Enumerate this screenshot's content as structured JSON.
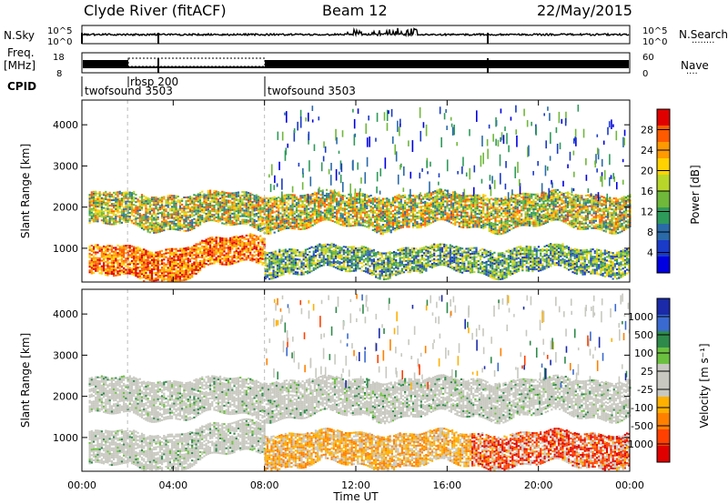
{
  "header": {
    "station": "Clyde River (fitACF)",
    "beam": "Beam 12",
    "date": "22/May/2015"
  },
  "panels": {
    "nsky": {
      "label": "N.Sky",
      "ticks_left": [
        "10^5",
        "10^0"
      ],
      "ticks_right": [
        "10^5",
        "10^0"
      ],
      "right_label": "N.Search"
    },
    "freq": {
      "label_top": "Freq.",
      "label_unit": "[MHz]",
      "ticks_left": [
        "18",
        "8"
      ],
      "ticks_right": [
        "60",
        "0"
      ],
      "right_label": "Nave"
    },
    "cpid": {
      "label": "CPID",
      "entries": [
        {
          "name": "twofsound 3503",
          "start": "00:00"
        },
        {
          "name": "rbsp 200",
          "start": "02:00"
        },
        {
          "name": "twofsound 3503",
          "start": "08:00"
        }
      ]
    }
  },
  "chart_data": [
    {
      "type": "heatmap",
      "name": "power",
      "ylabel": "Slant Range [km]",
      "ylim": [
        180,
        4600
      ],
      "yticks": [
        1000,
        2000,
        3000,
        4000
      ],
      "xlim": [
        "00:00",
        "24:00"
      ],
      "colorbar": {
        "label": "Power [dB]",
        "ticks": [
          "28",
          "24",
          "20",
          "16",
          "12",
          "8",
          "4"
        ],
        "colors": [
          "#e00000",
          "#ff5a00",
          "#ff9a00",
          "#ffd200",
          "#b8d62a",
          "#6fb83a",
          "#2e9a5a",
          "#2a6aa8",
          "#1a3ac8",
          "#0000e0"
        ]
      },
      "bands": [
        {
          "start_h": 0.3,
          "end_h": 24.0,
          "range_low_km": 1500,
          "range_high_km": 2300,
          "level": "mid-high"
        },
        {
          "start_h": 0.3,
          "end_h": 8.0,
          "range_low_km": 250,
          "range_high_km": 1000,
          "level": "high"
        },
        {
          "start_h": 8.0,
          "end_h": 24.0,
          "range_low_km": 400,
          "range_high_km": 1000,
          "level": "mid"
        }
      ]
    },
    {
      "type": "heatmap",
      "name": "velocity",
      "ylabel": "Slant Range [km]",
      "ylim": [
        180,
        4600
      ],
      "yticks": [
        1000,
        2000,
        3000,
        4000
      ],
      "xlim": [
        "00:00",
        "24:00"
      ],
      "colorbar": {
        "label": "Velocity [m s⁻¹]",
        "ticks": [
          "1000",
          "500",
          "100",
          "25",
          "-25",
          "-100",
          "-500",
          "-1000"
        ],
        "colors": [
          "#1a2aa8",
          "#3a6ad0",
          "#2e8a4a",
          "#6cc040",
          "#c8c8c0",
          "#c8c8c0",
          "#ffb000",
          "#ff8000",
          "#ff4000",
          "#e00000"
        ]
      },
      "bands": [
        {
          "start_h": 0.3,
          "end_h": 24.0,
          "range_low_km": 1500,
          "range_high_km": 2400,
          "level": "ground-scatter"
        },
        {
          "start_h": 0.3,
          "end_h": 8.0,
          "range_low_km": 250,
          "range_high_km": 1100,
          "level": "ground-scatter"
        },
        {
          "start_h": 8.0,
          "end_h": 24.0,
          "range_low_km": 300,
          "range_high_km": 1100,
          "level": "away"
        }
      ]
    }
  ],
  "xaxis": {
    "ticks": [
      "00:00",
      "04:00",
      "08:00",
      "12:00",
      "16:00",
      "20:00",
      "00:00"
    ],
    "label": "Time UT"
  },
  "dotted_legend": {
    "nsearch": "········",
    "nave": "····"
  }
}
